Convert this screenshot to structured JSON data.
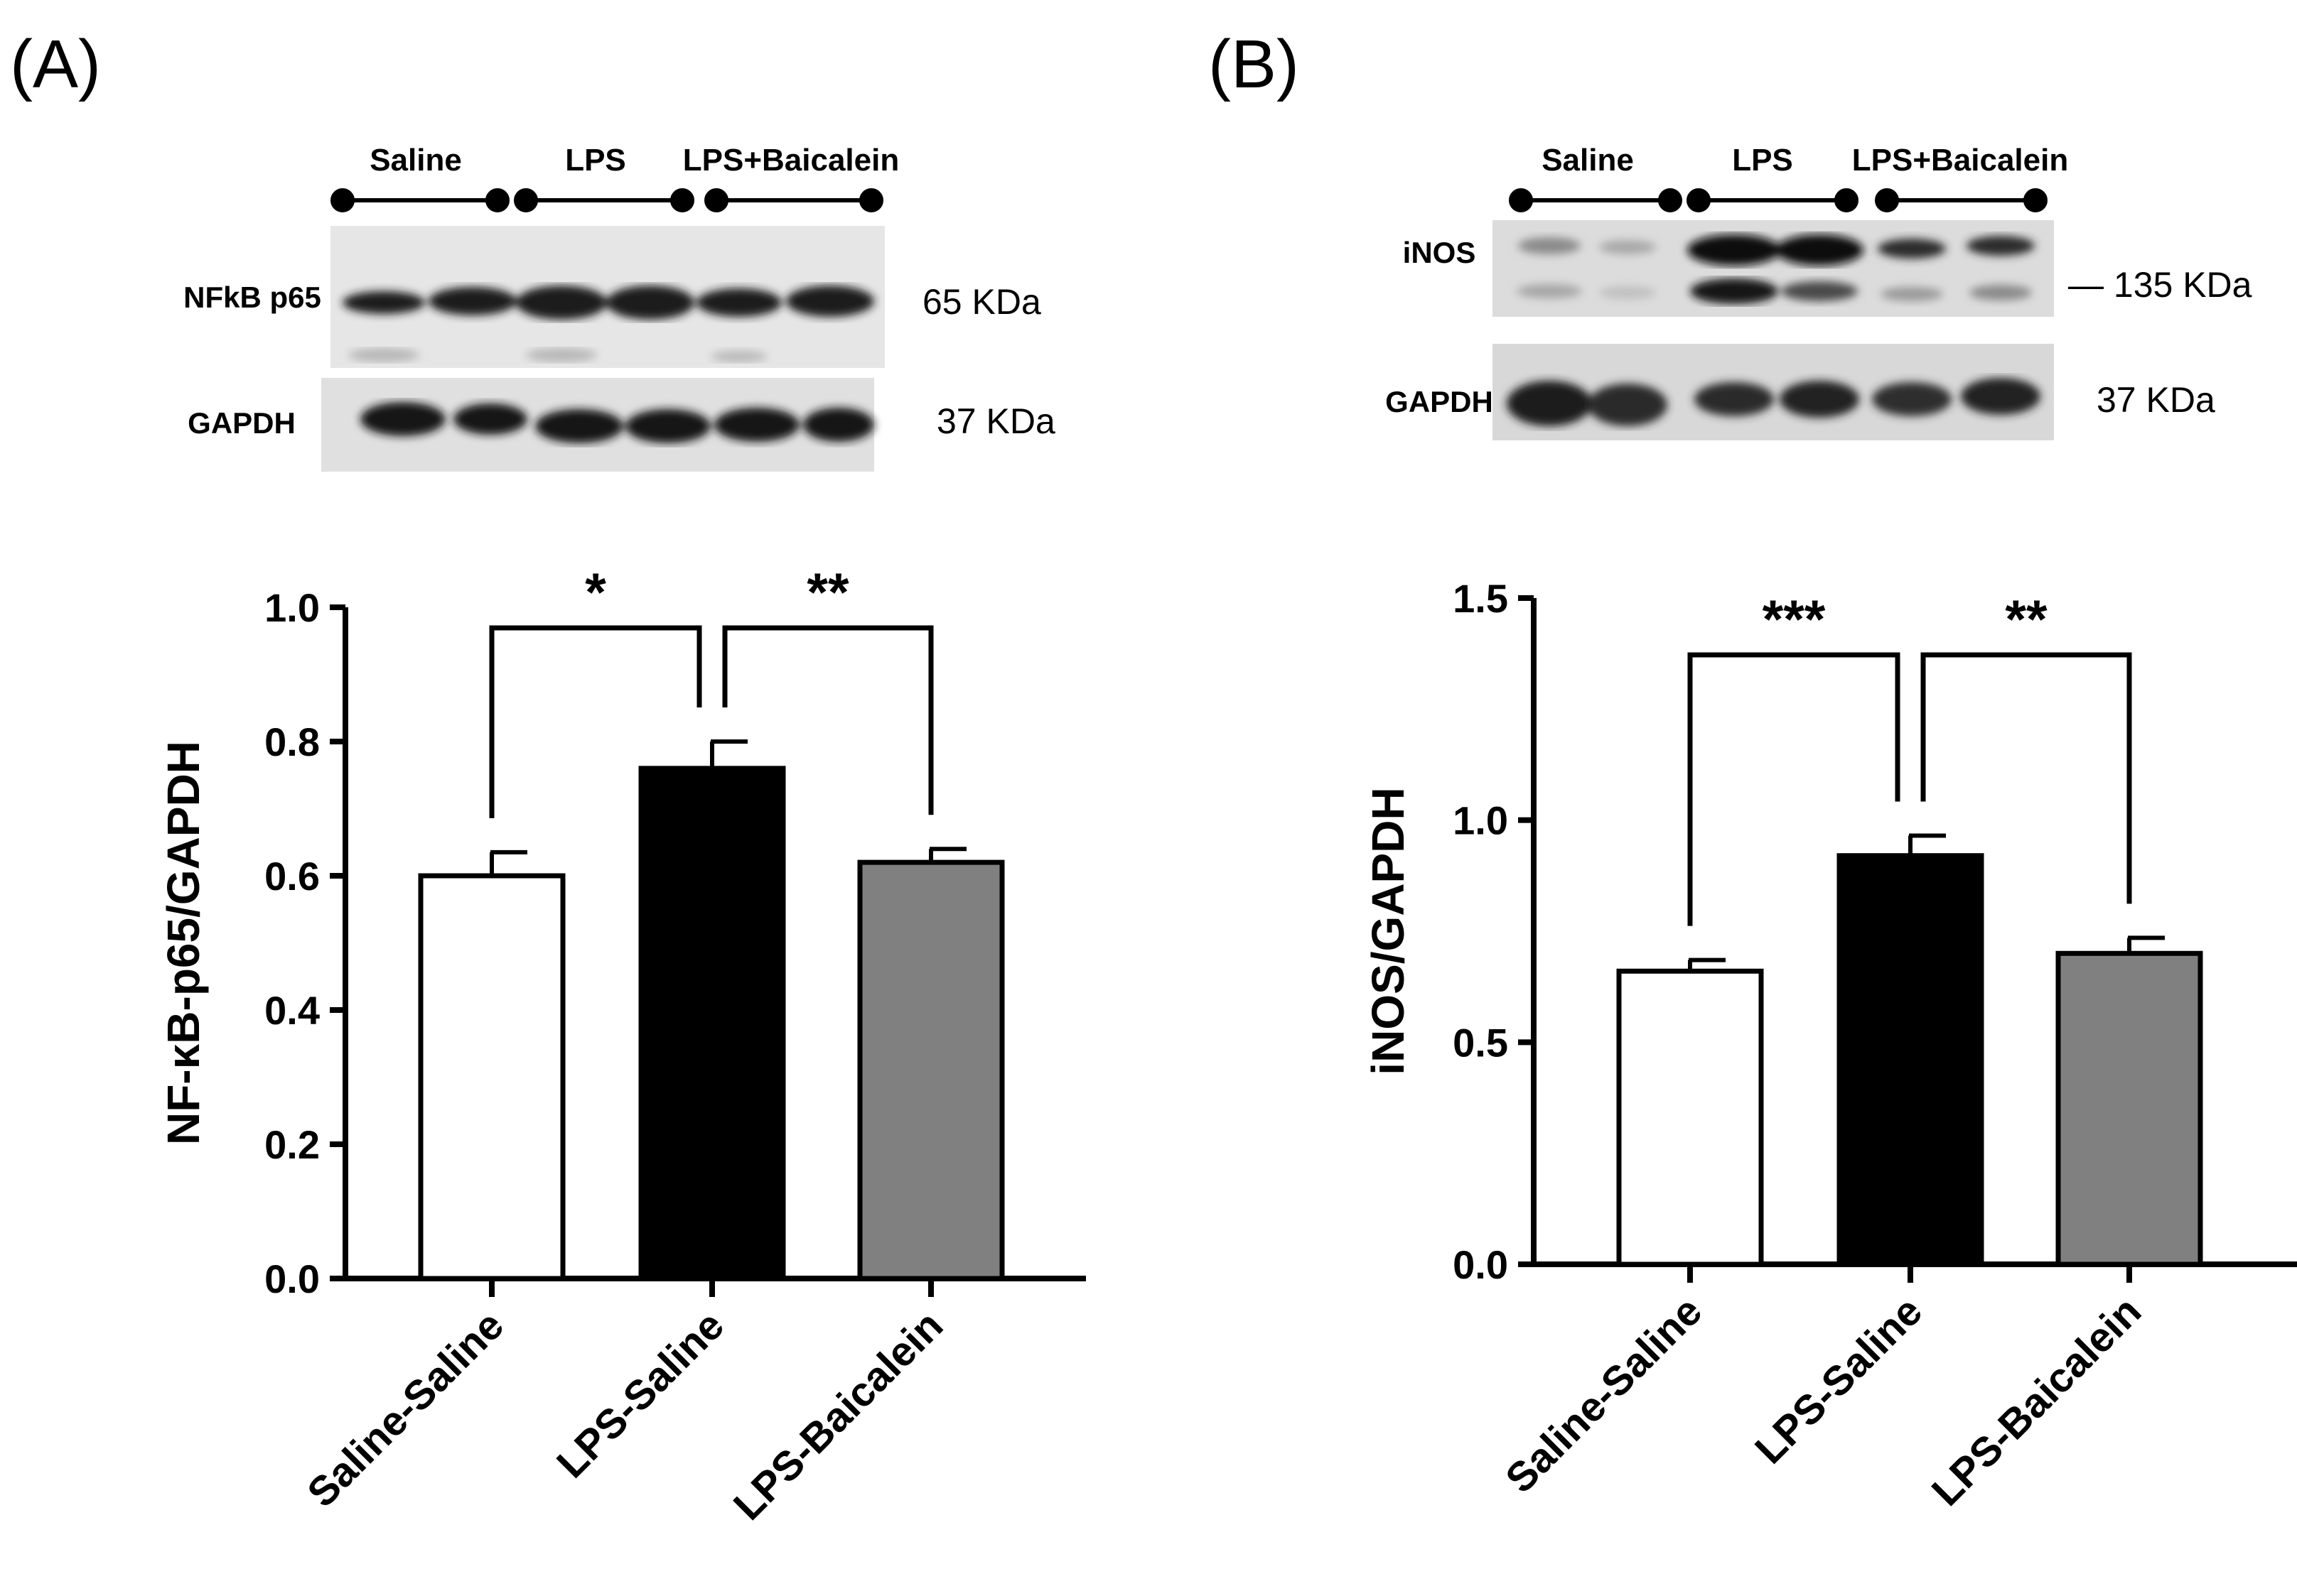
{
  "panels": [
    {
      "letter": "(A)",
      "blot": {
        "groups": [
          "Saline",
          "LPS",
          "LPS+Baicalein"
        ],
        "rows": [
          {
            "name": "NFkB p65",
            "size": "65 KDa"
          },
          {
            "name": "GAPDH",
            "size": "37 KDa"
          }
        ]
      }
    },
    {
      "letter": "(B)",
      "blot": {
        "groups": [
          "Saline",
          "LPS",
          "LPS+Baicalein"
        ],
        "rows": [
          {
            "name": "iNOS",
            "size": "— 135 KDa"
          },
          {
            "name": "GAPDH",
            "size": "37 KDa"
          }
        ]
      }
    }
  ],
  "chart_data": [
    {
      "type": "bar",
      "categories": [
        "Saline-Saline",
        "LPS-Saline",
        "LPS-Baicalein"
      ],
      "values": [
        0.6,
        0.76,
        0.62
      ],
      "errors": [
        0.035,
        0.04,
        0.02
      ],
      "bar_colors": [
        "#ffffff",
        "#000000",
        "#808080"
      ],
      "ylabel": "NF-κB-p65/GAPDH",
      "ylim": [
        0,
        1.0
      ],
      "yticks": [
        "0.0",
        "0.2",
        "0.4",
        "0.6",
        "0.8",
        "1.0"
      ],
      "significance": [
        {
          "from": 0,
          "to": 1,
          "label": "*"
        },
        {
          "from": 1,
          "to": 2,
          "label": "**"
        }
      ]
    },
    {
      "type": "bar",
      "categories": [
        "Saline-Saline",
        "LPS-Saline",
        "LPS-Baicalein"
      ],
      "values": [
        0.66,
        0.92,
        0.7
      ],
      "errors": [
        0.025,
        0.045,
        0.035
      ],
      "bar_colors": [
        "#ffffff",
        "#000000",
        "#808080"
      ],
      "ylabel": "iNOS/GAPDH",
      "ylim": [
        0,
        1.5
      ],
      "yticks": [
        "0.0",
        "0.5",
        "1.0",
        "1.5"
      ],
      "significance": [
        {
          "from": 0,
          "to": 1,
          "label": "***"
        },
        {
          "from": 1,
          "to": 2,
          "label": "**"
        }
      ]
    }
  ]
}
